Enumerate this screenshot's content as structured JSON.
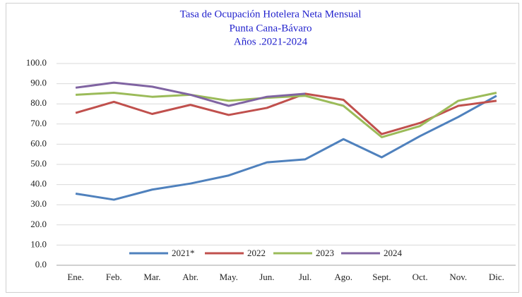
{
  "chart_data": {
    "type": "line",
    "title": [
      "Tasa de Ocupación Hotelera Neta Mensual",
      "Punta Cana-Bávaro",
      "Años .2021-2024"
    ],
    "categories": [
      "Ene.",
      "Feb.",
      "Mar.",
      "Abr.",
      "May.",
      "Jun.",
      "Jul.",
      "Ago.",
      "Sept.",
      "Oct.",
      "Nov.",
      "Dic."
    ],
    "series": [
      {
        "name": "2021*",
        "color": "#4f81bd",
        "values": [
          35.5,
          32.5,
          37.5,
          40.5,
          44.5,
          51,
          52.5,
          62.5,
          53.5,
          64,
          73.5,
          84
        ]
      },
      {
        "name": "2022",
        "color": "#c0504d",
        "values": [
          75.5,
          81,
          75,
          79.5,
          74.5,
          78,
          85,
          82,
          65,
          70.5,
          79,
          81.5
        ]
      },
      {
        "name": "2023",
        "color": "#9bbb59",
        "values": [
          84.5,
          85.5,
          83.5,
          84.5,
          81.5,
          83,
          84,
          79,
          63.5,
          69,
          81.5,
          85.5
        ]
      },
      {
        "name": "2024",
        "color": "#8064a2",
        "values": [
          88,
          90.5,
          88.5,
          84.5,
          79,
          83.5,
          85,
          null,
          null,
          null,
          null,
          null
        ]
      }
    ],
    "ylim": [
      0,
      100
    ],
    "yticks": [
      {
        "value": 0,
        "label": "0.0"
      },
      {
        "value": 10,
        "label": "10.0"
      },
      {
        "value": 20,
        "label": "20.0"
      },
      {
        "value": 30,
        "label": "30.0"
      },
      {
        "value": 40,
        "label": "40.0"
      },
      {
        "value": 50,
        "label": "50.0"
      },
      {
        "value": 60,
        "label": "60.0"
      },
      {
        "value": 70,
        "label": "70.0"
      },
      {
        "value": 80,
        "label": "80.0"
      },
      {
        "value": 90,
        "label": "90.0"
      },
      {
        "value": 100,
        "label": "100.0"
      }
    ],
    "grid": true,
    "legend": "bottom"
  }
}
